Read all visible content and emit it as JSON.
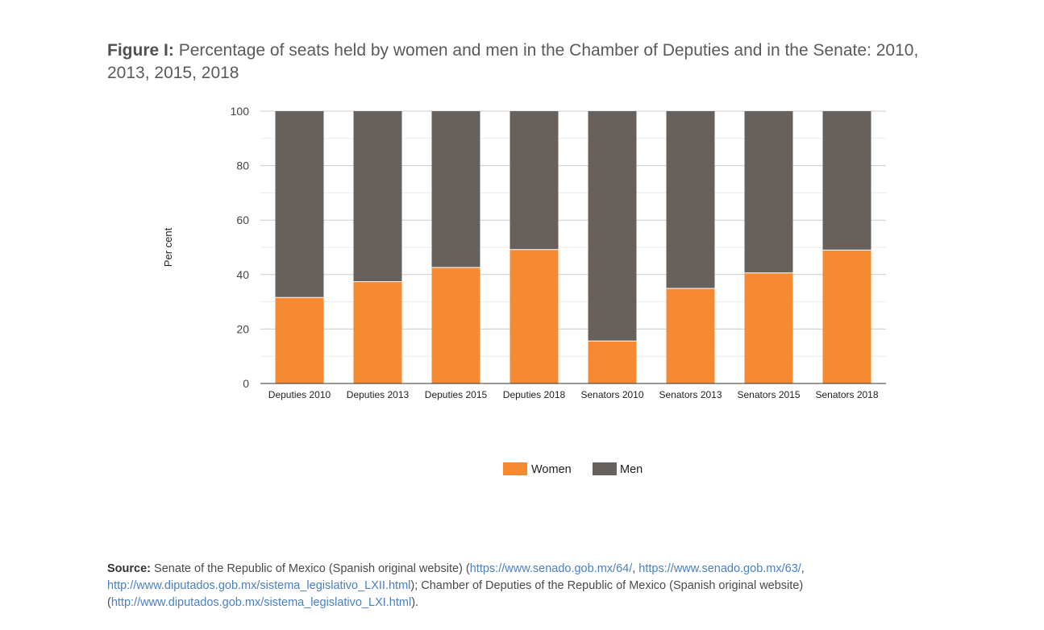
{
  "header": {
    "title_lead": "Figure I:",
    "title_text": "Percentage of seats held by women and men in the Chamber of Deputies and in the Senate: 2010, 2013, 2015, 2018"
  },
  "chart_data": {
    "type": "bar",
    "stacked": true,
    "categories": [
      "Deputies 2010",
      "Deputies 2013",
      "Deputies 2015",
      "Deputies 2018",
      "Senators 2010",
      "Senators 2013",
      "Senators 2015",
      "Senators 2018"
    ],
    "series": [
      {
        "name": "Women",
        "color": "#f58a33",
        "values": [
          31.6,
          37.4,
          42.6,
          49.2,
          15.6,
          34.9,
          40.6,
          49.0
        ]
      },
      {
        "name": "Men",
        "color": "#67615d",
        "values": [
          68.4,
          62.6,
          57.4,
          50.8,
          84.4,
          65.1,
          59.4,
          51.0
        ]
      }
    ],
    "ylabel": "Per cent",
    "xlabel": "",
    "ylim": [
      0,
      100
    ],
    "yticks": [
      0,
      20,
      40,
      60,
      80,
      100
    ],
    "grid": true,
    "legend": "bottom"
  },
  "source": {
    "lead": "Source:",
    "text1": " Senate of the Republic of Mexico (Spanish original website) (",
    "link1": "https://www.senado.gob.mx/64/",
    "sep1": ", ",
    "link2": "https://www.senado.gob.mx/63/",
    "sep2": ", ",
    "link3": "http://www.diputados.gob.mx/sistema_legislativo_LXII.html",
    "text2": "); Chamber of Deputies of the Republic of Mexico (Spanish original website) (",
    "link4": "http://www.diputados.gob.mx/sistema_legislativo_LXI.html",
    "text3": ")."
  }
}
